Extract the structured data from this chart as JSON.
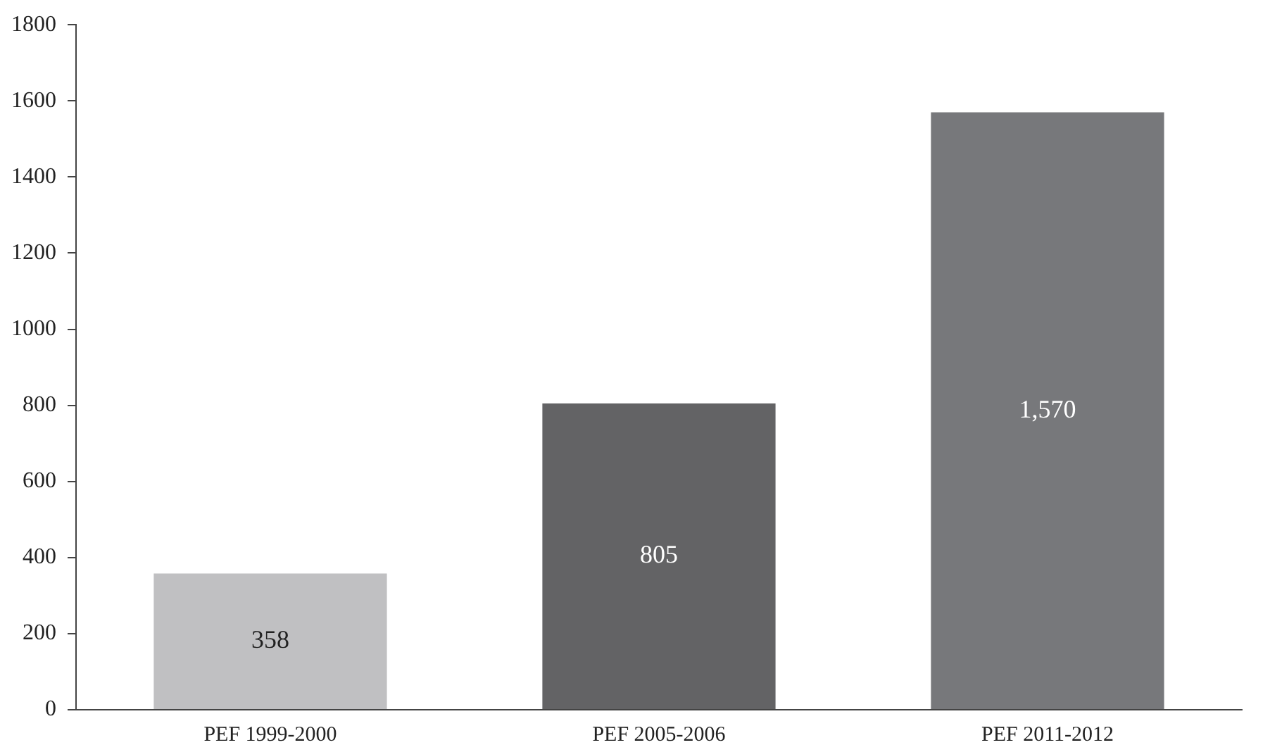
{
  "chart_data": {
    "type": "bar",
    "categories": [
      "PEF 1999-2000",
      "PEF 2005-2006",
      "PEF 2011-2012"
    ],
    "values": [
      358,
      805,
      1570
    ],
    "colors": [
      "#c0c0c2",
      "#636365",
      "#77787b"
    ],
    "value_labels": [
      "358",
      "805",
      "1,570"
    ],
    "ylim": [
      0,
      1800
    ],
    "yticks": [
      0,
      200,
      400,
      600,
      800,
      1000,
      1200,
      1400,
      1600,
      1800
    ],
    "grid": false,
    "legend": false
  }
}
